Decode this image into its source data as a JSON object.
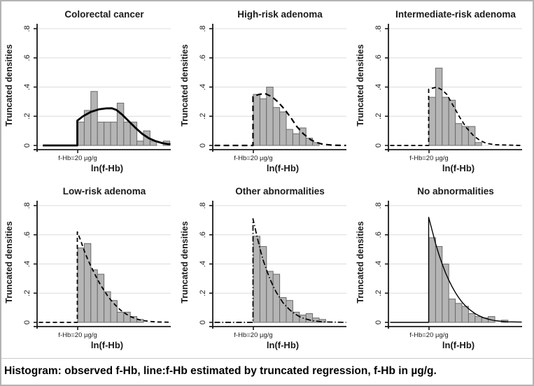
{
  "caption": "Histogram: observed f-Hb, line:f-Hb estimated by truncated regression, f-Hb in µg/g.",
  "axes": {
    "ylabel": "Truncated densities",
    "xlabel": "ln(f-Hb)",
    "ytick_labels": [
      "0",
      ".2",
      ".4",
      ".6",
      ".8"
    ],
    "ytick_values": [
      0,
      0.2,
      0.4,
      0.6,
      0.8
    ],
    "ylim": [
      0,
      0.8
    ],
    "xtick_label": "f-Hb=20 µg/g",
    "x_units": "histogram bins of ln(f-Hb) to the right of the truncation threshold f-Hb=20 µg/g",
    "grid": "horizontal gridlines at each y tick"
  },
  "colors": {
    "bar_fill": "#b5b5b5",
    "bar_stroke": "#6b6b6b",
    "gridline": "#dcdcdc",
    "axis": "#1a1a1a",
    "line": "#000000",
    "border": "#b3b3b3",
    "background": "#ffffff"
  },
  "chart_data": [
    {
      "type": "bar",
      "subtype": "histogram+density-line",
      "title": "Colorectal cancer",
      "bars": [
        0.16,
        0.24,
        0.37,
        0.16,
        0.16,
        0.16,
        0.29,
        0.16,
        0.16,
        0.03,
        0.1,
        0.03,
        0,
        0.03
      ],
      "line_style": "solid-thick",
      "line_points": [
        [
          -5.3,
          0
        ],
        [
          -0.05,
          0
        ],
        [
          -0.05,
          0.17
        ],
        [
          0.8,
          0.2
        ],
        [
          2,
          0.23
        ],
        [
          3.2,
          0.247
        ],
        [
          4.3,
          0.254
        ],
        [
          5.2,
          0.255
        ],
        [
          5.9,
          0.243
        ],
        [
          6.8,
          0.21
        ],
        [
          7.8,
          0.165
        ],
        [
          8.8,
          0.12
        ],
        [
          9.8,
          0.08
        ],
        [
          10.8,
          0.05
        ],
        [
          11.8,
          0.03
        ],
        [
          12.8,
          0.017
        ],
        [
          13.6,
          0.01
        ],
        [
          14.1,
          0.008
        ]
      ]
    },
    {
      "type": "bar",
      "subtype": "histogram+density-line",
      "title": "High-risk adenoma",
      "bars": [
        0.35,
        0.32,
        0.4,
        0.26,
        0.23,
        0.11,
        0.08,
        0.12,
        0.05,
        0.02
      ],
      "line_style": "long-dash",
      "line_points": [
        [
          -5.9,
          0
        ],
        [
          -0.05,
          0
        ],
        [
          -0.05,
          0.335
        ],
        [
          0.9,
          0.35
        ],
        [
          1.8,
          0.355
        ],
        [
          2.8,
          0.335
        ],
        [
          3.7,
          0.3
        ],
        [
          4.7,
          0.25
        ],
        [
          5.7,
          0.19
        ],
        [
          6.6,
          0.13
        ],
        [
          7.6,
          0.08
        ],
        [
          8.7,
          0.04
        ],
        [
          9.6,
          0.02
        ],
        [
          10.6,
          0.008
        ],
        [
          12,
          0.002
        ],
        [
          14.1,
          0
        ]
      ]
    },
    {
      "type": "bar",
      "subtype": "histogram+density-line",
      "title": "Intermediate-risk adenoma",
      "bars": [
        0.33,
        0.53,
        0.33,
        0.31,
        0.15,
        0.13,
        0.13,
        0.02
      ],
      "line_style": "dashed",
      "line_points": [
        [
          -5.9,
          0
        ],
        [
          -0.05,
          0
        ],
        [
          -0.05,
          0.385
        ],
        [
          1.2,
          0.4
        ],
        [
          2,
          0.38
        ],
        [
          2.7,
          0.35
        ],
        [
          3.7,
          0.27
        ],
        [
          4.7,
          0.19
        ],
        [
          5.7,
          0.12
        ],
        [
          6.7,
          0.07
        ],
        [
          7.7,
          0.035
        ],
        [
          8.7,
          0.015
        ],
        [
          10,
          0.005
        ],
        [
          14.1,
          0
        ]
      ]
    },
    {
      "type": "bar",
      "subtype": "histogram+density-line",
      "title": "Low-risk adenoma",
      "bars": [
        0.51,
        0.54,
        0.36,
        0.33,
        0.21,
        0.15,
        0.07,
        0.07,
        0.04,
        0.02
      ],
      "line_style": "dashed",
      "line_points": [
        [
          -5.9,
          0
        ],
        [
          -0.05,
          0
        ],
        [
          -0.05,
          0.62
        ],
        [
          0.5,
          0.555
        ],
        [
          1,
          0.49
        ],
        [
          1.5,
          0.435
        ],
        [
          2,
          0.385
        ],
        [
          2.5,
          0.34
        ],
        [
          3,
          0.295
        ],
        [
          3.5,
          0.255
        ],
        [
          4,
          0.22
        ],
        [
          4.5,
          0.185
        ],
        [
          5,
          0.155
        ],
        [
          5.5,
          0.13
        ],
        [
          6,
          0.105
        ],
        [
          6.5,
          0.085
        ],
        [
          7,
          0.068
        ],
        [
          7.5,
          0.053
        ],
        [
          8,
          0.04
        ],
        [
          8.5,
          0.031
        ],
        [
          9,
          0.023
        ],
        [
          9.5,
          0.017
        ],
        [
          10,
          0.012
        ],
        [
          11,
          0.006
        ],
        [
          12,
          0.003
        ],
        [
          14.1,
          0.001
        ]
      ]
    },
    {
      "type": "bar",
      "subtype": "histogram+density-line",
      "title": "Other abnormalities",
      "bars": [
        0.59,
        0.52,
        0.35,
        0.33,
        0.17,
        0.15,
        0.07,
        0.05,
        0.06,
        0.03,
        0.02
      ],
      "line_style": "dash-dot",
      "line_points": [
        [
          -5.9,
          0
        ],
        [
          -0.05,
          0
        ],
        [
          -0.05,
          0.71
        ],
        [
          0.5,
          0.6
        ],
        [
          1,
          0.505
        ],
        [
          1.5,
          0.425
        ],
        [
          2,
          0.36
        ],
        [
          2.5,
          0.3
        ],
        [
          3,
          0.25
        ],
        [
          3.5,
          0.205
        ],
        [
          4,
          0.17
        ],
        [
          4.5,
          0.135
        ],
        [
          5,
          0.11
        ],
        [
          5.5,
          0.087
        ],
        [
          6,
          0.068
        ],
        [
          6.5,
          0.053
        ],
        [
          7,
          0.04
        ],
        [
          7.5,
          0.03
        ],
        [
          8,
          0.023
        ],
        [
          8.5,
          0.017
        ],
        [
          9,
          0.012
        ],
        [
          10,
          0.006
        ],
        [
          11,
          0.003
        ],
        [
          14.1,
          0
        ]
      ]
    },
    {
      "type": "bar",
      "subtype": "histogram+density-line",
      "title": "No abnormalities",
      "bars": [
        0.58,
        0.52,
        0.4,
        0.16,
        0.13,
        0.11,
        0.06,
        0.04,
        0.03,
        0.04,
        0,
        0.015
      ],
      "line_style": "solid-thin",
      "line_points": [
        [
          -5.9,
          0
        ],
        [
          -0.05,
          0
        ],
        [
          -0.05,
          0.72
        ],
        [
          0.5,
          0.625
        ],
        [
          1,
          0.54
        ],
        [
          1.5,
          0.465
        ],
        [
          2,
          0.4
        ],
        [
          2.5,
          0.34
        ],
        [
          3,
          0.29
        ],
        [
          3.5,
          0.245
        ],
        [
          4,
          0.205
        ],
        [
          4.5,
          0.17
        ],
        [
          5,
          0.14
        ],
        [
          5.5,
          0.115
        ],
        [
          6,
          0.094
        ],
        [
          6.5,
          0.076
        ],
        [
          7,
          0.06
        ],
        [
          7.5,
          0.048
        ],
        [
          8,
          0.037
        ],
        [
          8.5,
          0.029
        ],
        [
          9,
          0.022
        ],
        [
          9.5,
          0.017
        ],
        [
          10,
          0.012
        ],
        [
          11,
          0.007
        ],
        [
          12,
          0.004
        ],
        [
          14.1,
          0.002
        ]
      ]
    }
  ]
}
